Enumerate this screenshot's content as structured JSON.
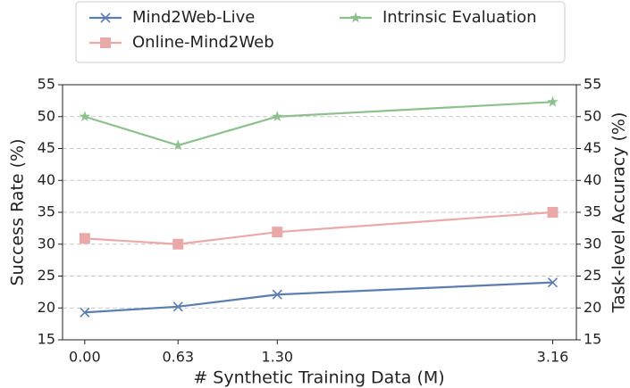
{
  "chart_data": {
    "type": "line",
    "xlabel": "# Synthetic Training Data (M)",
    "ylabel": "Success Rate (%)",
    "y2label": "Task-level Accuracy (%)",
    "x": [
      0,
      0.63,
      1.3,
      3.16
    ],
    "xlim": [
      -0.15,
      3.32
    ],
    "xticks": [
      {
        "value": 0,
        "label": "0.00"
      },
      0.63,
      {
        "value": 1.3,
        "label": "1.30"
      },
      3.16
    ],
    "ylim": [
      15,
      55
    ],
    "yticks": [
      15,
      20,
      25,
      30,
      35,
      40,
      45,
      50,
      55
    ],
    "y2lim": [
      15,
      55
    ],
    "y2ticks": [
      15,
      20,
      25,
      30,
      35,
      40,
      45,
      50,
      55
    ],
    "grid": true,
    "legend": "top",
    "series": [
      {
        "name": "Mind2Web-Live",
        "color": "#5b7db1",
        "marker": "x",
        "values": [
          19.3,
          20.2,
          22.1,
          24.0
        ]
      },
      {
        "name": "Online-Mind2Web",
        "color": "#eaa9a9",
        "marker": "square",
        "values": [
          30.9,
          30.0,
          31.9,
          35.0
        ]
      },
      {
        "name": "Intrinsic Evaluation",
        "color": "#8dc08d",
        "marker": "star",
        "axis": "y2",
        "values": [
          50.0,
          45.5,
          50.0,
          52.3
        ]
      }
    ]
  }
}
